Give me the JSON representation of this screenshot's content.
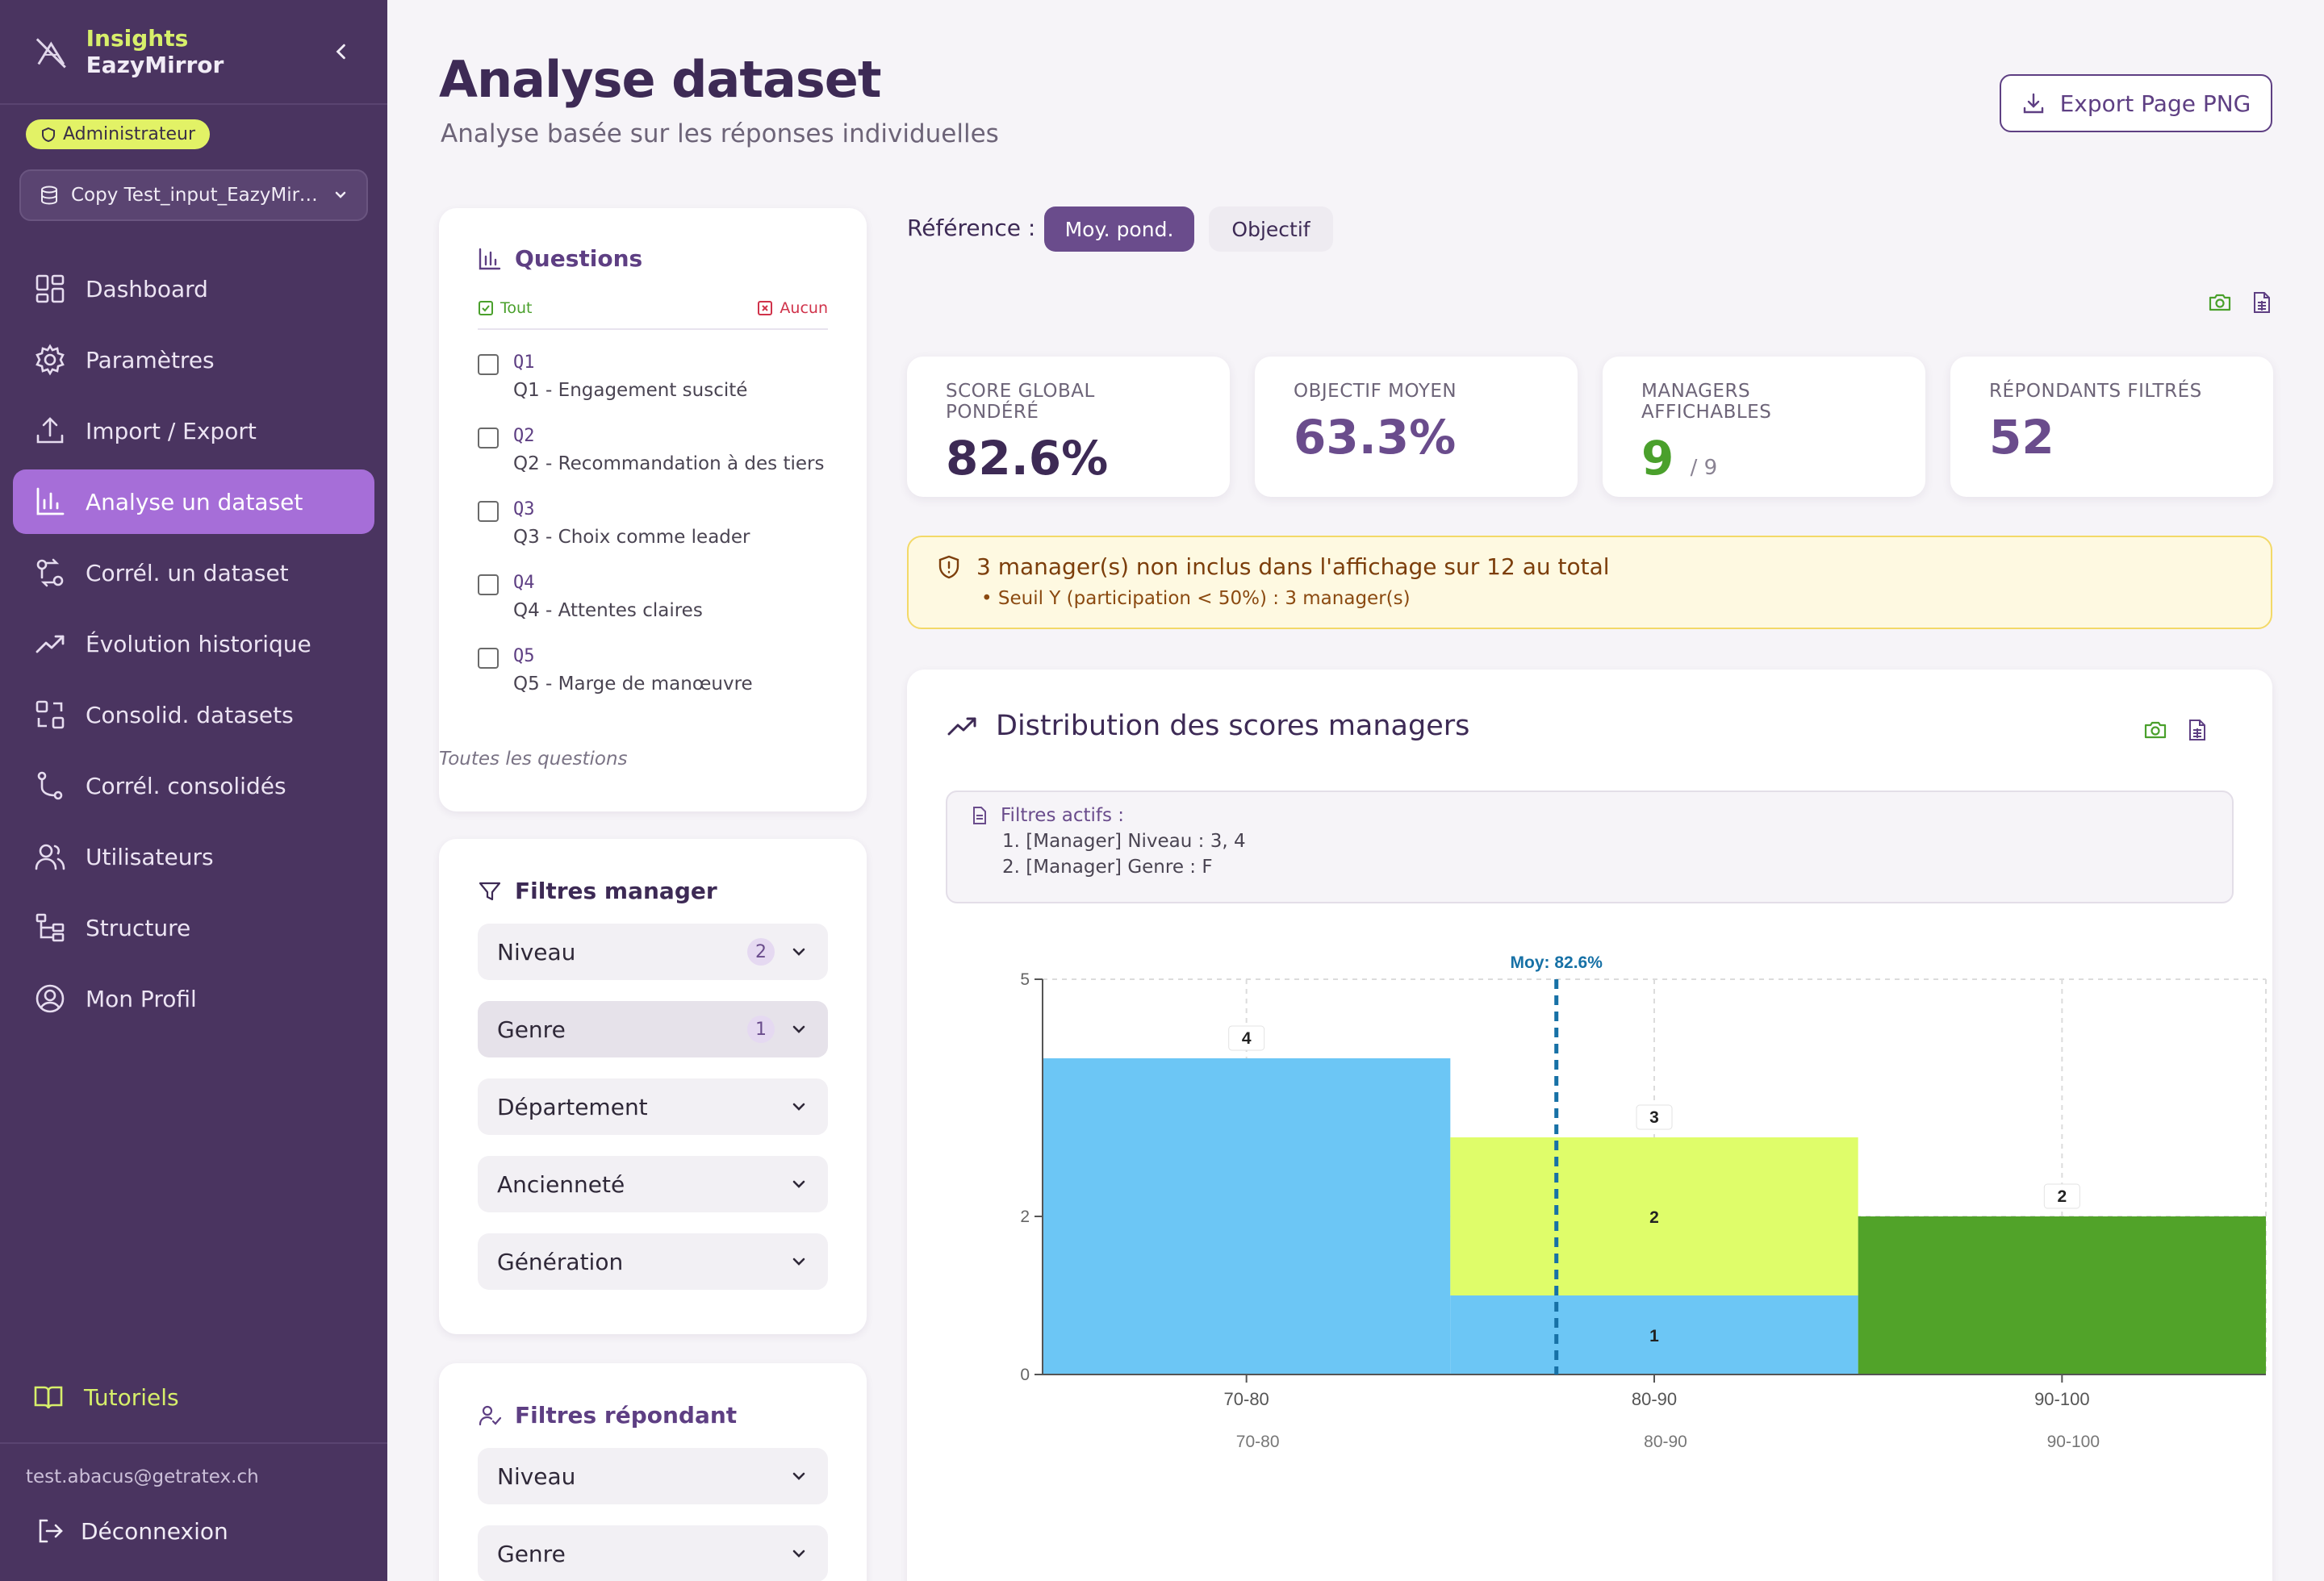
{
  "sidebar": {
    "brand_a": "Insights",
    "brand_b": "EazyMirror",
    "role": "Administrateur",
    "dataset": "Copy Test_input_EazyMirr...",
    "items": [
      {
        "label": "Dashboard",
        "icon": "dashboard-icon"
      },
      {
        "label": "Paramètres",
        "icon": "gear-icon"
      },
      {
        "label": "Import / Export",
        "icon": "upload-icon"
      },
      {
        "label": "Analyse un dataset",
        "icon": "bar-chart-icon",
        "active": true
      },
      {
        "label": "Corrél. un dataset",
        "icon": "correlation-icon"
      },
      {
        "label": "Évolution historique",
        "icon": "trend-icon"
      },
      {
        "label": "Consolid. datasets",
        "icon": "consolidate-icon"
      },
      {
        "label": "Corrél. consolidés",
        "icon": "branch-icon"
      },
      {
        "label": "Utilisateurs",
        "icon": "users-icon"
      },
      {
        "label": "Structure",
        "icon": "structure-icon"
      },
      {
        "label": "Mon Profil",
        "icon": "profile-icon"
      }
    ],
    "tutorials": "Tutoriels",
    "email": "test.abacus@getratex.ch",
    "logout": "Déconnexion"
  },
  "header": {
    "title": "Analyse dataset",
    "subtitle": "Analyse basée sur les réponses individuelles",
    "export": "Export Page PNG"
  },
  "questions": {
    "title": "Questions",
    "all": "Tout",
    "none": "Aucun",
    "items": [
      {
        "code": "Q1",
        "text": "Q1 - Engagement suscité"
      },
      {
        "code": "Q2",
        "text": "Q2 - Recommandation à des tiers"
      },
      {
        "code": "Q3",
        "text": "Q3 - Choix comme leader"
      },
      {
        "code": "Q4",
        "text": "Q4 - Attentes claires"
      },
      {
        "code": "Q5",
        "text": "Q5 - Marge de manœuvre"
      }
    ],
    "footer": "Toutes les questions"
  },
  "manager_filters": {
    "title": "Filtres manager",
    "items": [
      {
        "label": "Niveau",
        "count": "2"
      },
      {
        "label": "Genre",
        "count": "1"
      },
      {
        "label": "Département",
        "count": ""
      },
      {
        "label": "Ancienneté",
        "count": ""
      },
      {
        "label": "Génération",
        "count": ""
      }
    ]
  },
  "respondent_filters": {
    "title": "Filtres répondant",
    "items": [
      {
        "label": "Niveau"
      },
      {
        "label": "Genre"
      }
    ]
  },
  "reference": {
    "label": "Référence :",
    "options": [
      "Moy. pond.",
      "Objectif"
    ],
    "selected": "Moy. pond."
  },
  "kpis": [
    {
      "label": "SCORE GLOBAL PONDÉRÉ",
      "value": "82.6%",
      "sub": "",
      "color": "#3d2a55"
    },
    {
      "label": "OBJECTIF MOYEN",
      "value": "63.3%",
      "sub": "",
      "color": "#6a4c8c"
    },
    {
      "label": "MANAGERS AFFICHABLES",
      "value": "9",
      "sub": "/ 9",
      "color": "#4aa02c"
    },
    {
      "label": "RÉPONDANTS FILTRÉS",
      "value": "52",
      "sub": "",
      "color": "#6a4c8c"
    }
  ],
  "warning": {
    "title": "3 manager(s) non inclus dans l'affichage sur 12 au total",
    "detail": "• Seuil Y (participation < 50%) : 3 manager(s)"
  },
  "distribution": {
    "title": "Distribution des scores managers",
    "filters_head": "Filtres actifs :",
    "filters": [
      "1. [Manager] Niveau : 3, 4",
      "2. [Manager] Genre : F"
    ]
  },
  "chart_data": {
    "type": "bar",
    "stacked": true,
    "categories": [
      "70-80",
      "80-90",
      "90-100"
    ],
    "series": [
      {
        "color": "#6cc6f5",
        "values": [
          4,
          1,
          0
        ]
      },
      {
        "color": "#dffd6a",
        "values": [
          0,
          2,
          0
        ]
      },
      {
        "color": "#51a329",
        "values": [
          0,
          0,
          2
        ]
      }
    ],
    "totals": [
      4,
      3,
      2
    ],
    "ylim": [
      0,
      5
    ],
    "yticks": [
      0,
      2,
      5
    ],
    "mean_line": {
      "label": "Moy: 82.6%",
      "value": 82.6
    },
    "x_range": [
      70,
      100
    ],
    "grid": true
  }
}
